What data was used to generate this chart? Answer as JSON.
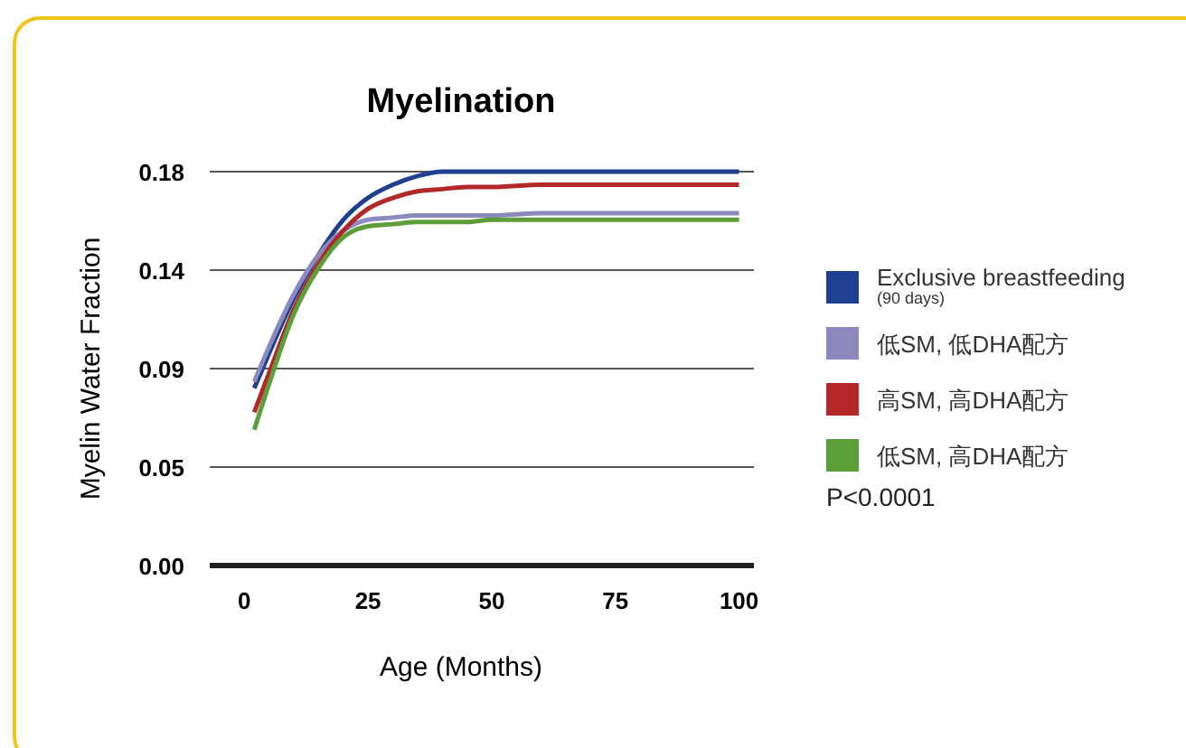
{
  "chart_data": {
    "type": "line",
    "title": "Myelination",
    "xlabel": "Age (Months)",
    "ylabel": "Myelin Water Fraction",
    "x": [
      2,
      5,
      10,
      15,
      20,
      25,
      30,
      35,
      40,
      45,
      50,
      60,
      70,
      80,
      90,
      100
    ],
    "xlim": [
      -7,
      103
    ],
    "xticks": [
      0,
      25,
      50,
      75,
      100
    ],
    "ylim": [
      0,
      0.18
    ],
    "yticks": [
      {
        "value": 0,
        "label": "0.00"
      },
      {
        "value": 0.045,
        "label": "0.05"
      },
      {
        "value": 0.09,
        "label": "0.09"
      },
      {
        "value": 0.135,
        "label": "0.14"
      },
      {
        "value": 0.18,
        "label": "0.18"
      }
    ],
    "grid": "y",
    "legend": "right",
    "marker": "none",
    "line_style": "solid",
    "annotations": [
      "P<0.0001"
    ],
    "series": [
      {
        "name": "Exclusive breastfeeding\n(90 days)",
        "color": "#1f3f8f",
        "values": [
          0.081,
          0.097,
          0.122,
          0.142,
          0.158,
          0.168,
          0.174,
          0.178,
          0.18,
          0.18,
          0.18,
          0.18,
          0.18,
          0.18,
          0.18,
          0.18
        ]
      },
      {
        "name": "低SM, 低DHA配方",
        "color": "#8b89bd",
        "values": [
          0.084,
          0.1,
          0.124,
          0.142,
          0.153,
          0.158,
          0.159,
          0.16,
          0.16,
          0.16,
          0.16,
          0.161,
          0.161,
          0.161,
          0.161,
          0.161
        ]
      },
      {
        "name": "高SM, 高DHA配方",
        "color": "#b22727",
        "values": [
          0.07,
          0.088,
          0.117,
          0.138,
          0.153,
          0.163,
          0.168,
          0.171,
          0.172,
          0.173,
          0.173,
          0.174,
          0.174,
          0.174,
          0.174,
          0.174
        ]
      },
      {
        "name": "低SM, 高DHA配方",
        "color": "#5c9e3a",
        "values": [
          0.062,
          0.083,
          0.115,
          0.136,
          0.15,
          0.155,
          0.156,
          0.157,
          0.157,
          0.157,
          0.158,
          0.158,
          0.158,
          0.158,
          0.158,
          0.158
        ]
      }
    ]
  }
}
